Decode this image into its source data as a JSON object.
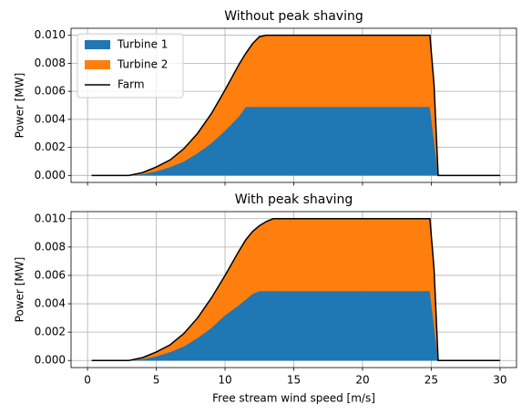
{
  "chart_data": [
    {
      "type": "stacked_area",
      "title": "Without peak shaving",
      "ylabel": "Power [MW]",
      "x": [
        0.3,
        1,
        2,
        3,
        4,
        5,
        6,
        7,
        8,
        9,
        10,
        11,
        11.5,
        12,
        12.5,
        13,
        13.5,
        14,
        15,
        20,
        24.9,
        25.2,
        25.5,
        26,
        30
      ],
      "series": [
        {
          "name": "Turbine 1",
          "color": "#1f77b4",
          "values": [
            0,
            0,
            0,
            0,
            0.0001,
            0.0003,
            0.0006,
            0.001,
            0.0016,
            0.0023,
            0.0032,
            0.0042,
            0.0049,
            0.0049,
            0.0049,
            0.0049,
            0.0049,
            0.0049,
            0.0049,
            0.0049,
            0.0049,
            0.0025,
            0,
            0,
            0
          ]
        },
        {
          "name": "Turbine 2",
          "color": "#ff7f0e",
          "values": [
            0,
            0,
            0,
            0,
            0.0001,
            0.0003,
            0.0005,
            0.0009,
            0.0014,
            0.0021,
            0.0029,
            0.0037,
            0.0038,
            0.0045,
            0.005,
            0.0051,
            0.0051,
            0.0051,
            0.0051,
            0.0051,
            0.0051,
            0.004,
            0,
            0,
            0
          ]
        },
        {
          "name": "Farm",
          "color": "#000000",
          "type": "line",
          "values": [
            0,
            0,
            0,
            0,
            0.0002,
            0.0006,
            0.0011,
            0.0019,
            0.003,
            0.0044,
            0.0061,
            0.0079,
            0.0087,
            0.0094,
            0.0099,
            0.01,
            0.01,
            0.01,
            0.01,
            0.01,
            0.01,
            0.0065,
            0,
            0,
            0
          ]
        }
      ],
      "xlim": [
        -1.2,
        31.2
      ],
      "xticks": [
        0,
        5,
        10,
        15,
        20,
        25,
        30
      ],
      "show_xtick_labels": false,
      "ylim": [
        -0.0005,
        0.0105
      ],
      "yticks": [
        {
          "value": 0,
          "label": "0.000"
        },
        {
          "value": 0.002,
          "label": "0.002"
        },
        {
          "value": 0.004,
          "label": "0.004"
        },
        {
          "value": 0.006,
          "label": "0.006"
        },
        {
          "value": 0.008,
          "label": "0.008"
        },
        {
          "value": 0.01,
          "label": "0.010"
        }
      ],
      "grid": true,
      "legend": "upper left"
    },
    {
      "type": "stacked_area",
      "title": "With peak shaving",
      "ylabel": "Power [MW]",
      "xlabel": "Free stream wind speed [m/s]",
      "x": [
        0.3,
        1,
        2,
        3,
        4,
        5,
        6,
        7,
        8,
        9,
        10,
        11,
        11.5,
        12,
        12.5,
        13,
        13.5,
        14,
        15,
        20,
        24.9,
        25.2,
        25.5,
        26,
        30
      ],
      "series": [
        {
          "name": "Turbine 1",
          "color": "#1f77b4",
          "values": [
            0,
            0,
            0,
            0,
            0.0001,
            0.0003,
            0.0006,
            0.001,
            0.0016,
            0.0023,
            0.0032,
            0.0039,
            0.0043,
            0.0047,
            0.0049,
            0.0049,
            0.0049,
            0.0049,
            0.0049,
            0.0049,
            0.0049,
            0.0025,
            0,
            0,
            0
          ]
        },
        {
          "name": "Turbine 2",
          "color": "#ff7f0e",
          "values": [
            0,
            0,
            0,
            0,
            0.0001,
            0.0003,
            0.0005,
            0.0009,
            0.0014,
            0.0021,
            0.0028,
            0.0038,
            0.0042,
            0.0044,
            0.0046,
            0.0049,
            0.0051,
            0.0051,
            0.0051,
            0.0051,
            0.0051,
            0.004,
            0,
            0,
            0
          ]
        },
        {
          "name": "Farm",
          "color": "#000000",
          "type": "line",
          "values": [
            0,
            0,
            0,
            0,
            0.0002,
            0.0006,
            0.0011,
            0.0019,
            0.003,
            0.0044,
            0.006,
            0.0077,
            0.0085,
            0.0091,
            0.0095,
            0.0098,
            0.01,
            0.01,
            0.01,
            0.01,
            0.01,
            0.0065,
            0,
            0,
            0
          ]
        }
      ],
      "xlim": [
        -1.2,
        31.2
      ],
      "xticks": [
        0,
        5,
        10,
        15,
        20,
        25,
        30
      ],
      "show_xtick_labels": true,
      "ylim": [
        -0.0005,
        0.0105
      ],
      "yticks": [
        {
          "value": 0,
          "label": "0.000"
        },
        {
          "value": 0.002,
          "label": "0.002"
        },
        {
          "value": 0.004,
          "label": "0.004"
        },
        {
          "value": 0.006,
          "label": "0.006"
        },
        {
          "value": 0.008,
          "label": "0.008"
        },
        {
          "value": 0.01,
          "label": "0.010"
        }
      ],
      "grid": true
    }
  ]
}
